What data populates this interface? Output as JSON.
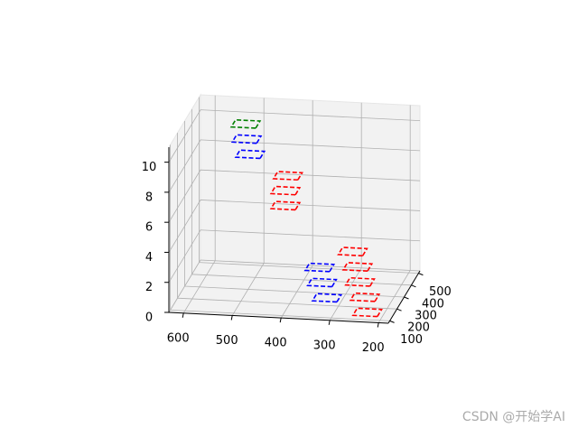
{
  "chart_data": {
    "type": "rect3d",
    "xlim": [
      630,
      180
    ],
    "ylim": [
      80,
      520
    ],
    "zlim": [
      0,
      11
    ],
    "xticks": [
      200,
      300,
      400,
      500,
      600
    ],
    "yticks": [
      100,
      200,
      300,
      400,
      500
    ],
    "zticks": [
      0,
      2,
      4,
      6,
      8,
      10
    ],
    "rect_size": [
      50,
      60
    ],
    "grid": true,
    "series": [
      {
        "color": "#ff0000",
        "x": [
          235,
          240,
          250,
          255,
          265,
          400,
          400,
          395
        ],
        "y": [
          160,
          160,
          160,
          160,
          160,
          140,
          140,
          140
        ],
        "z": [
          0,
          1,
          2,
          3,
          4,
          7,
          8,
          9
        ]
      },
      {
        "color": "#0000ff",
        "x": [
          315,
          325,
          330,
          496,
          503
        ],
        "y": [
          140,
          140,
          140,
          300,
          300
        ],
        "z": [
          1,
          2,
          3,
          9,
          10
        ]
      },
      {
        "color": "#008000",
        "x": [
          505
        ],
        "y": [
          300
        ],
        "z": [
          11
        ]
      }
    ]
  },
  "watermark": "CSDN @开始学AI"
}
